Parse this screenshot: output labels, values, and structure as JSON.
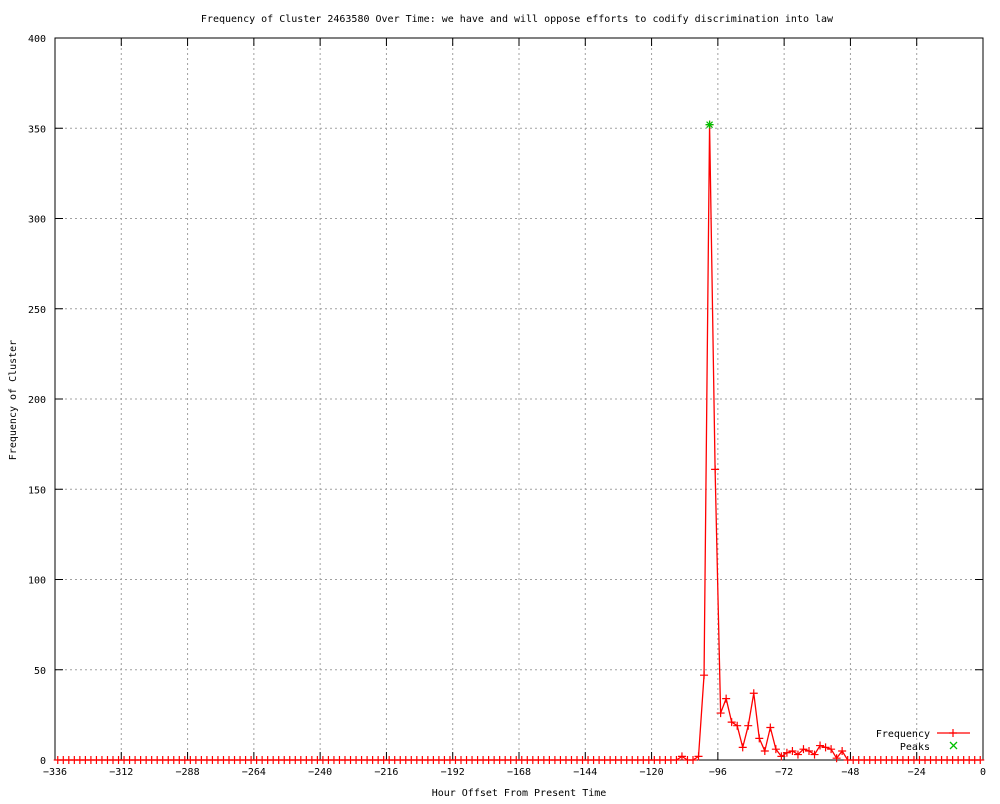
{
  "chart_data": {
    "type": "line",
    "title": "Frequency of Cluster 2463580 Over Time: we have and will oppose efforts to codify discrimination into law",
    "xlabel": "Hour Offset From Present Time",
    "ylabel": "Frequency of Cluster",
    "xlim": [
      -336,
      0
    ],
    "ylim": [
      0,
      400
    ],
    "xticks": [
      -336,
      -312,
      -288,
      -264,
      -240,
      -216,
      -192,
      -168,
      -144,
      -120,
      -96,
      -72,
      -48,
      -24,
      0
    ],
    "yticks": [
      0,
      50,
      100,
      150,
      200,
      250,
      300,
      350,
      400
    ],
    "grid": true,
    "legend_position": "bottom-right",
    "series": [
      {
        "name": "Frequency",
        "color": "#ff0000",
        "marker": "plus",
        "x": [
          -335,
          -333,
          -331,
          -329,
          -327,
          -325,
          -323,
          -321,
          -319,
          -317,
          -315,
          -313,
          -311,
          -309,
          -307,
          -305,
          -303,
          -301,
          -299,
          -297,
          -295,
          -293,
          -291,
          -289,
          -287,
          -285,
          -283,
          -281,
          -279,
          -277,
          -275,
          -273,
          -271,
          -269,
          -267,
          -265,
          -263,
          -261,
          -259,
          -257,
          -255,
          -253,
          -251,
          -249,
          -247,
          -245,
          -243,
          -241,
          -239,
          -237,
          -235,
          -233,
          -231,
          -229,
          -227,
          -225,
          -223,
          -221,
          -219,
          -217,
          -215,
          -213,
          -211,
          -209,
          -207,
          -205,
          -203,
          -201,
          -199,
          -197,
          -195,
          -193,
          -191,
          -189,
          -187,
          -185,
          -183,
          -181,
          -179,
          -177,
          -175,
          -173,
          -171,
          -169,
          -167,
          -165,
          -163,
          -161,
          -159,
          -157,
          -155,
          -153,
          -151,
          -149,
          -147,
          -145,
          -143,
          -141,
          -139,
          -137,
          -135,
          -133,
          -131,
          -129,
          -127,
          -125,
          -123,
          -121,
          -119,
          -117,
          -115,
          -113,
          -111,
          -109,
          -107,
          -105,
          -103,
          -101,
          -99,
          -97,
          -95,
          -93,
          -91,
          -89,
          -87,
          -85,
          -83,
          -81,
          -79,
          -77,
          -75,
          -73,
          -71,
          -69,
          -67,
          -65,
          -63,
          -61,
          -59,
          -57,
          -55,
          -53,
          -51,
          -49,
          -47,
          -45,
          -43,
          -41,
          -39,
          -37,
          -35,
          -33,
          -31,
          -29,
          -27,
          -25,
          -23,
          -21,
          -19,
          -17,
          -15,
          -13,
          -11,
          -9,
          -7,
          -5,
          -3,
          -1
        ],
        "y": [
          0,
          0,
          0,
          0,
          0,
          0,
          0,
          0,
          0,
          0,
          0,
          0,
          0,
          0,
          0,
          0,
          0,
          0,
          0,
          0,
          0,
          0,
          0,
          0,
          0,
          0,
          0,
          0,
          0,
          0,
          0,
          0,
          0,
          0,
          0,
          0,
          0,
          0,
          0,
          0,
          0,
          0,
          0,
          0,
          0,
          0,
          0,
          0,
          0,
          0,
          0,
          0,
          0,
          0,
          0,
          0,
          0,
          0,
          0,
          0,
          0,
          0,
          0,
          0,
          0,
          0,
          0,
          0,
          0,
          0,
          0,
          0,
          0,
          0,
          0,
          0,
          0,
          0,
          0,
          0,
          0,
          0,
          0,
          0,
          0,
          0,
          0,
          0,
          0,
          0,
          0,
          0,
          0,
          0,
          0,
          0,
          0,
          0,
          0,
          0,
          0,
          0,
          0,
          0,
          0,
          0,
          0,
          0,
          0,
          0,
          0,
          0,
          0,
          2,
          0,
          0,
          2,
          47,
          352,
          161,
          26,
          34,
          21,
          19,
          7,
          19,
          37,
          12,
          5,
          18,
          6,
          2,
          4,
          5,
          3,
          6,
          5,
          3,
          8,
          7,
          6,
          1,
          5,
          0,
          0,
          0,
          0,
          0,
          0,
          0,
          0,
          0,
          0,
          0,
          0,
          0,
          0,
          0,
          0,
          0,
          0,
          0,
          0,
          0,
          0,
          0,
          0,
          0
        ]
      },
      {
        "name": "Peaks",
        "color": "#00c000",
        "marker": "cross",
        "x": [
          -99
        ],
        "y": [
          352
        ]
      }
    ]
  }
}
